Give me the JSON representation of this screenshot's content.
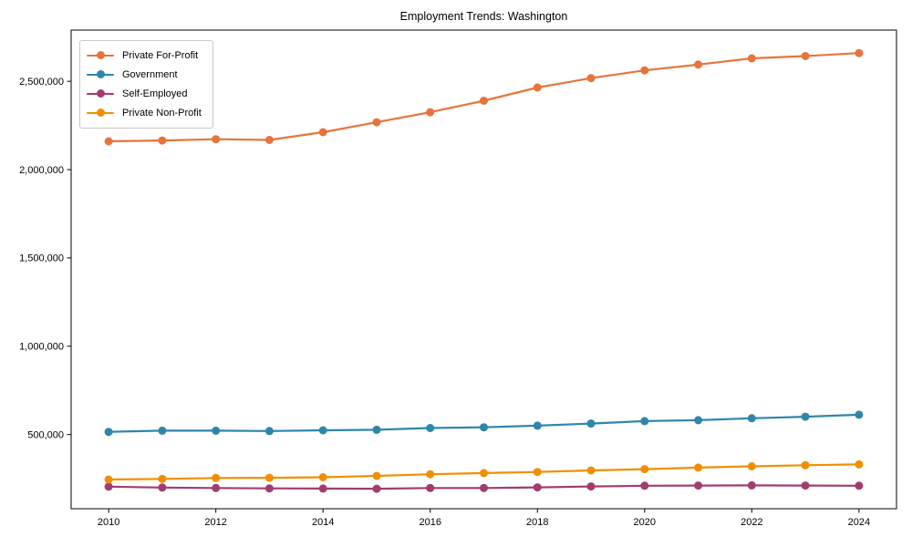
{
  "chart_data": {
    "type": "line",
    "title": "Employment Trends: Washington",
    "x": [
      2010,
      2011,
      2012,
      2013,
      2014,
      2015,
      2016,
      2017,
      2018,
      2019,
      2020,
      2021,
      2022,
      2023,
      2024
    ],
    "series": [
      {
        "name": "Private For-Profit",
        "color": "#e8743b",
        "values": [
          2160000,
          2165000,
          2172000,
          2168000,
          2212000,
          2268000,
          2325000,
          2390000,
          2465000,
          2518000,
          2562000,
          2595000,
          2630000,
          2643000,
          2660000
        ]
      },
      {
        "name": "Government",
        "color": "#2e86ab",
        "values": [
          515000,
          522000,
          522000,
          520000,
          524000,
          527000,
          537000,
          541000,
          550000,
          562000,
          576000,
          581000,
          592000,
          601000,
          612000
        ]
      },
      {
        "name": "Self-Employed",
        "color": "#a23b72",
        "values": [
          205000,
          200000,
          197000,
          195000,
          194000,
          193000,
          197000,
          197000,
          201000,
          206000,
          210000,
          211000,
          212000,
          211000,
          210000
        ]
      },
      {
        "name": "Private Non-Profit",
        "color": "#f18f01",
        "values": [
          245000,
          249000,
          254000,
          255000,
          258000,
          266000,
          275000,
          282000,
          288000,
          297000,
          304000,
          313000,
          320000,
          326000,
          331000
        ]
      }
    ],
    "xlabel": "",
    "ylabel": "",
    "xlim": [
      2009.3,
      2024.7
    ],
    "ylim": [
      80000,
      2790000
    ],
    "x_ticks": [
      2010,
      2012,
      2014,
      2016,
      2018,
      2020,
      2022,
      2024
    ],
    "y_ticks": [
      500000,
      1000000,
      1500000,
      2000000,
      2500000
    ],
    "grid": false,
    "legend_position": "upper left",
    "marker": "circle",
    "axis_color": "#000000"
  }
}
